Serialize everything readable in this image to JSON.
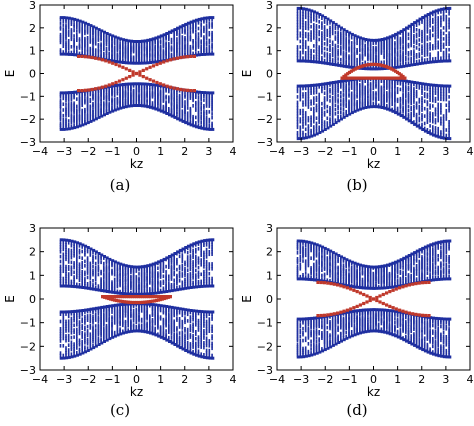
{
  "colors": {
    "bulk": "#1f2fa0",
    "surface": "#c0392b",
    "axes": "#000000"
  },
  "chart_data": [
    {
      "type": "scatter",
      "caption": "(a)",
      "xlabel": "kz",
      "ylabel": "E",
      "xlim": [
        -4,
        4
      ],
      "ylim": [
        -3,
        3
      ],
      "xticks": [
        -4,
        -3,
        -2,
        -1,
        0,
        1,
        2,
        3,
        4
      ],
      "yticks": [
        -3,
        -2,
        -1,
        0,
        1,
        2,
        3
      ],
      "bulk": {
        "k_range": [
          -3.14,
          3.14
        ],
        "edge_max": 2.45,
        "edge_min": 1.4,
        "gap_max": 0.85,
        "gap_min": 0.45
      },
      "surface": {
        "k_range": [
          -2.4,
          2.4
        ],
        "E_at_edge": 0.75,
        "E_at_center": 0.0,
        "shape": "x-crossing"
      }
    },
    {
      "type": "scatter",
      "caption": "(b)",
      "xlabel": "kz",
      "ylabel": "E",
      "xlim": [
        -4,
        4
      ],
      "ylim": [
        -3,
        3
      ],
      "xticks": [
        -4,
        -3,
        -2,
        -1,
        0,
        1,
        2,
        3,
        4
      ],
      "yticks": [
        -3,
        -2,
        -1,
        0,
        1,
        2,
        3
      ],
      "bulk": {
        "k_range": [
          -3.14,
          3.14
        ],
        "edge_max": 2.85,
        "edge_min": 1.45,
        "gap_max": 0.55,
        "gap_min": 0.2
      },
      "surface": {
        "k_range": [
          -1.3,
          1.3
        ],
        "E_at_edge": -0.2,
        "E_at_center": 0.4,
        "shape": "lens"
      }
    },
    {
      "type": "scatter",
      "caption": "(c)",
      "xlabel": "kz",
      "ylabel": "E",
      "xlim": [
        -4,
        4
      ],
      "ylim": [
        -3,
        3
      ],
      "xticks": [
        -4,
        -3,
        -2,
        -1,
        0,
        1,
        2,
        3,
        4
      ],
      "yticks": [
        -3,
        -2,
        -1,
        0,
        1,
        2,
        3
      ],
      "bulk": {
        "k_range": [
          -3.14,
          3.14
        ],
        "edge_max": 2.5,
        "edge_min": 1.35,
        "gap_max": 0.55,
        "gap_min": 0.2
      },
      "surface": {
        "k_range": [
          -1.4,
          1.4
        ],
        "E_at_edge": 0.1,
        "E_at_center": -0.15,
        "shape": "lens"
      }
    },
    {
      "type": "scatter",
      "caption": "(d)",
      "xlabel": "kz",
      "ylabel": "E",
      "xlim": [
        -4,
        4
      ],
      "ylim": [
        -3,
        3
      ],
      "xticks": [
        -4,
        -3,
        -2,
        -1,
        0,
        1,
        2,
        3,
        4
      ],
      "yticks": [
        -3,
        -2,
        -1,
        0,
        1,
        2,
        3
      ],
      "bulk": {
        "k_range": [
          -3.14,
          3.14
        ],
        "edge_max": 2.45,
        "edge_min": 1.35,
        "gap_max": 0.85,
        "gap_min": 0.45
      },
      "surface": {
        "k_range": [
          -2.3,
          2.3
        ],
        "E_at_edge": 0.7,
        "E_at_center": 0.0,
        "shape": "x-crossing"
      }
    }
  ]
}
